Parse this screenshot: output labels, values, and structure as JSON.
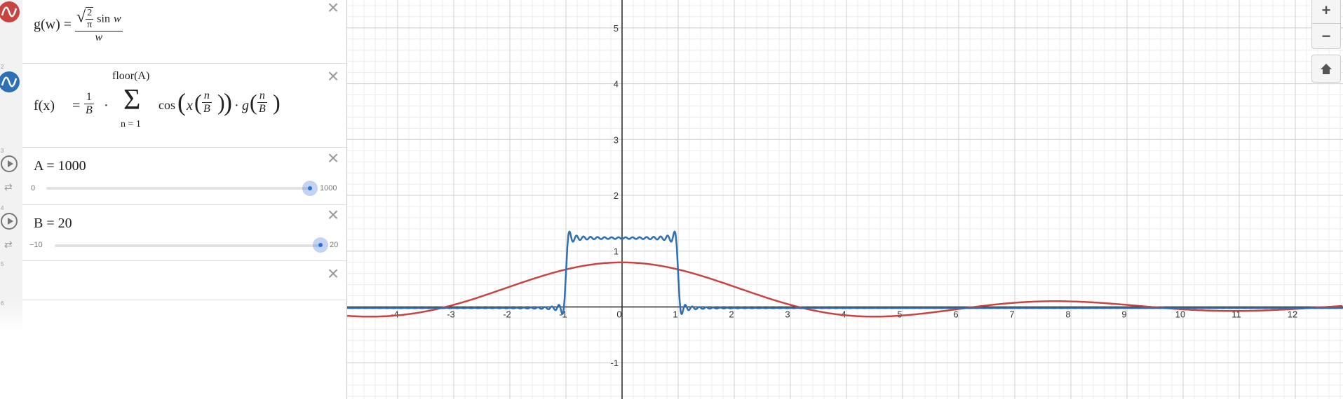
{
  "expressions": [
    {
      "index": "1",
      "color": "#c74440",
      "lhs": "g(w)",
      "sqrt_num": "2",
      "sqrt_den": "π",
      "fn": "sin",
      "var": "w",
      "den": "w"
    },
    {
      "index": "2",
      "color": "#2d70b3",
      "lhs": "f(x)",
      "coef_num": "1",
      "coef_den": "B",
      "upper": "floor(A)",
      "lower": "n = 1",
      "cos": "cos",
      "x": "x",
      "n": "n",
      "B": "B",
      "g": "g"
    },
    {
      "index": "3",
      "name": "A",
      "label": "A = 1000",
      "min": "0",
      "max": "1000",
      "value": 1000
    },
    {
      "index": "4",
      "name": "B",
      "label": "B = 20",
      "min": "−10",
      "max": "20",
      "value": 20
    },
    {
      "index": "5"
    },
    {
      "index": "6"
    }
  ],
  "controls": {
    "zoom_in": "+",
    "zoom_out": "−"
  },
  "graph": {
    "x_ticks": [
      "-4",
      "-3",
      "-2",
      "-1",
      "0",
      "1",
      "2",
      "3",
      "4",
      "5",
      "6",
      "7",
      "8",
      "9",
      "10",
      "11",
      "12"
    ],
    "y_ticks": [
      "5",
      "4",
      "3",
      "2",
      "1",
      "-1"
    ],
    "xrange": [
      -4.9,
      12.85
    ],
    "yrange": [
      -1.65,
      5.5
    ]
  },
  "chart_data": {
    "type": "line",
    "xlim": [
      -4.9,
      12.85
    ],
    "ylim": [
      -1.65,
      5.5
    ],
    "grid": true,
    "series": [
      {
        "name": "g(w)",
        "color": "#c74440",
        "x": [
          -4.9,
          -4,
          -3.14,
          -2,
          -1,
          0,
          1,
          2,
          3.14,
          4,
          4.5,
          6.28,
          7.7,
          9.42,
          11,
          12.85
        ],
        "y": [
          -0.16,
          -0.15,
          0,
          0.36,
          0.67,
          0.8,
          0.67,
          0.36,
          0,
          -0.15,
          -0.17,
          0,
          0.13,
          0,
          -0.08,
          -0.02
        ]
      },
      {
        "name": "f(x)",
        "color": "#2d70b3",
        "x": [
          -4.9,
          -1.05,
          -1,
          -0.95,
          0,
          0.95,
          1,
          1.05,
          12.85
        ],
        "y": [
          0,
          0,
          0.62,
          1.28,
          1.25,
          1.28,
          0.62,
          0,
          0
        ]
      }
    ]
  }
}
